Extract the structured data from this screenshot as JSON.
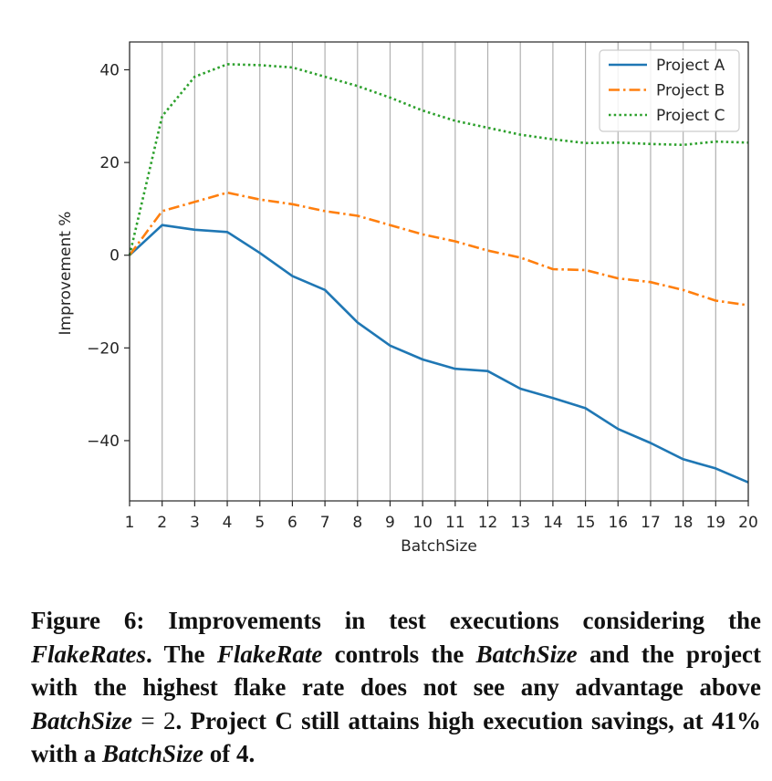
{
  "chart_data": {
    "type": "line",
    "xlabel": "BatchSize",
    "ylabel": "Improvement %",
    "x": [
      1,
      2,
      3,
      4,
      5,
      6,
      7,
      8,
      9,
      10,
      11,
      12,
      13,
      14,
      15,
      16,
      17,
      18,
      19,
      20
    ],
    "xlim": [
      1,
      20
    ],
    "ylim": [
      -53,
      46
    ],
    "yticks": [
      40,
      20,
      0,
      -20,
      -40
    ],
    "ytick_labels": [
      "40",
      "20",
      "0",
      "−20",
      "−40"
    ],
    "xtick_labels": [
      "1",
      "2",
      "3",
      "4",
      "5",
      "6",
      "7",
      "8",
      "9",
      "10",
      "11",
      "12",
      "13",
      "14",
      "15",
      "16",
      "17",
      "18",
      "19",
      "20"
    ],
    "grid": "vertical",
    "legend_position": "top-right",
    "series": [
      {
        "name": "Project A",
        "color": "#1f77b4",
        "style": "solid",
        "values": [
          0,
          6.5,
          5.5,
          5,
          0.5,
          -4.5,
          -7.5,
          -14.5,
          -19.5,
          -22.5,
          -24.5,
          -25,
          -28.8,
          -30.8,
          -33,
          -37.5,
          -40.5,
          -44,
          -46,
          -49
        ]
      },
      {
        "name": "Project B",
        "color": "#ff7f0e",
        "style": "dashdot",
        "values": [
          0,
          9.5,
          11.5,
          13.5,
          12,
          11,
          9.5,
          8.5,
          6.5,
          4.5,
          3,
          1,
          -0.5,
          -3,
          -3.2,
          -5,
          -5.8,
          -7.5,
          -9.8,
          -10.8
        ]
      },
      {
        "name": "Project C",
        "color": "#2ca02c",
        "style": "dotted",
        "values": [
          0,
          30,
          38.5,
          41.2,
          41,
          40.5,
          38.5,
          36.5,
          34,
          31.2,
          29,
          27.5,
          26,
          25,
          24.2,
          24.3,
          24,
          23.8,
          24.5,
          24.3
        ]
      }
    ]
  },
  "caption": {
    "figure_label": "Figure 6:",
    "t1": " Improvements in test executions considering the ",
    "i1": "FlakeRates",
    "t2": ". The ",
    "i2": "FlakeRate",
    "t3": " controls the ",
    "i3": "BatchSize",
    "t4": " and the project with the highest flake rate does not see any advantage above ",
    "i4": "BatchSize",
    "eq": " = 2",
    "t5": ". Project C still attains high execution savings, at 41% with a ",
    "i5": "BatchSize",
    "t6": " of 4."
  }
}
